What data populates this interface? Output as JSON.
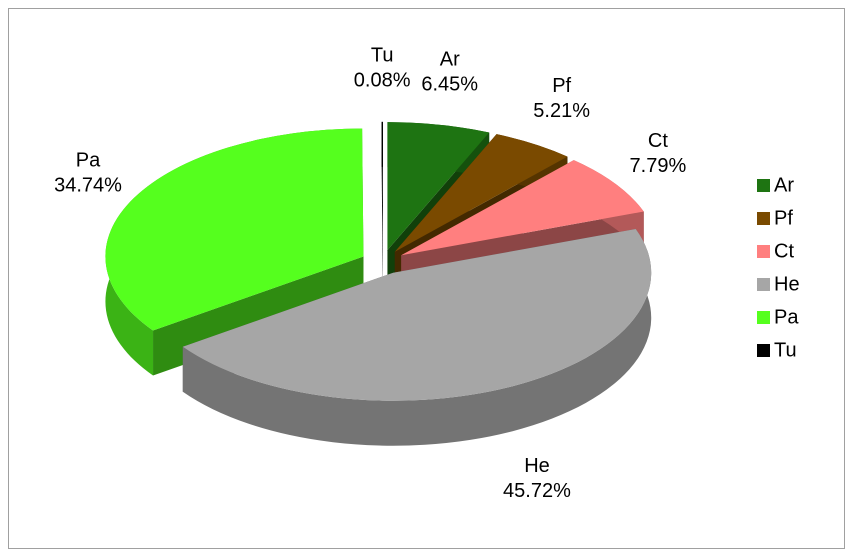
{
  "chart_data": {
    "type": "pie",
    "is_3d": true,
    "exploded": true,
    "categories": [
      "Ar",
      "Pf",
      "Ct",
      "He",
      "Pa",
      "Tu"
    ],
    "values": [
      6.45,
      5.21,
      7.79,
      45.72,
      34.74,
      0.08
    ],
    "value_labels": [
      "6.45%",
      "5.21%",
      "7.79%",
      "45.72%",
      "34.74%",
      "0.08%"
    ],
    "colors": [
      "#1e7412",
      "#7a4a00",
      "#ff7f7f",
      "#a6a6a6",
      "#55ff1e",
      "#000000"
    ],
    "legend": "right"
  }
}
